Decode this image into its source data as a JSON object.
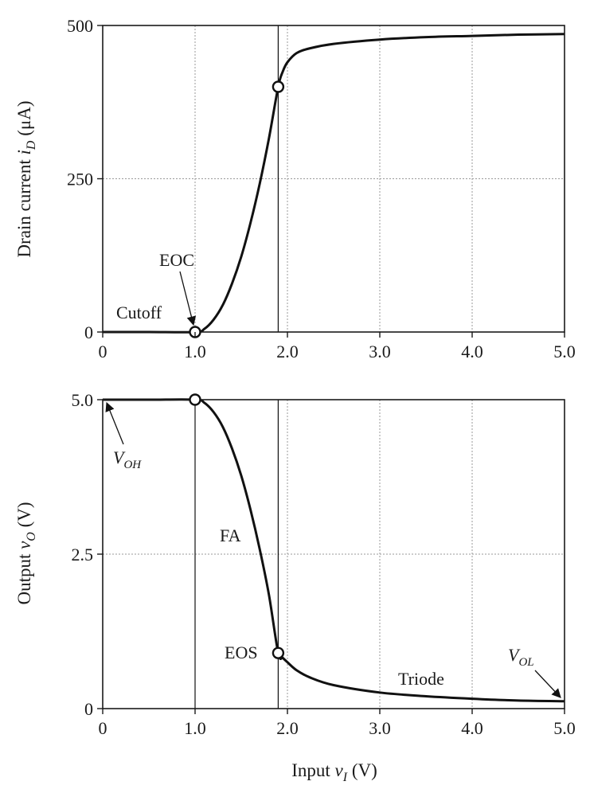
{
  "chart_data": [
    {
      "type": "line",
      "ylabel_main": "Drain current ",
      "ylabel_sym": "i",
      "ylabel_sub": "D",
      "ylabel_unit": " (μA)",
      "xlim": [
        0,
        5
      ],
      "ylim": [
        0,
        500
      ],
      "xticks": [
        "0",
        "1.0",
        "2.0",
        "3.0",
        "4.0",
        "5.0"
      ],
      "xtick_values": [
        0,
        1,
        2,
        3,
        4,
        5
      ],
      "yticks": [
        "0",
        "250",
        "500"
      ],
      "ytick_values": [
        0,
        250,
        500
      ],
      "grid": true,
      "series": [
        {
          "x": [
            0,
            0.5,
            1.0,
            1.1,
            1.2,
            1.3,
            1.4,
            1.5,
            1.6,
            1.7,
            1.8,
            1.9,
            1.95,
            2.0,
            2.1,
            2.25,
            2.5,
            3.0,
            3.5,
            4.0,
            4.5,
            5.0
          ],
          "y": [
            0,
            0,
            0,
            5,
            20,
            44,
            79,
            123,
            178,
            242,
            316,
            400,
            425,
            440,
            455,
            463,
            470,
            477,
            481,
            483,
            485,
            486
          ]
        }
      ],
      "markers": [
        {
          "x": 1.0,
          "y": 0
        },
        {
          "x": 1.9,
          "y": 400
        }
      ],
      "vlines": [
        1.9
      ],
      "annotations": {
        "eoc": "EOC",
        "cutoff": "Cutoff"
      }
    },
    {
      "type": "line",
      "ylabel_main": "Output ",
      "ylabel_sym": "v",
      "ylabel_sub": "O",
      "ylabel_unit": " (V)",
      "xlabel_main": "Input ",
      "xlabel_sym": "v",
      "xlabel_sub": "I",
      "xlabel_unit": " (V)",
      "xlim": [
        0,
        5
      ],
      "ylim": [
        0,
        5
      ],
      "xticks": [
        "0",
        "1.0",
        "2.0",
        "3.0",
        "4.0",
        "5.0"
      ],
      "xtick_values": [
        0,
        1,
        2,
        3,
        4,
        5
      ],
      "yticks": [
        "0",
        "2.5",
        "5.0"
      ],
      "ytick_values": [
        0,
        2.5,
        5
      ],
      "grid": true,
      "series": [
        {
          "x": [
            0,
            0.5,
            1.0,
            1.1,
            1.2,
            1.3,
            1.4,
            1.5,
            1.6,
            1.7,
            1.8,
            1.9,
            1.95,
            2.0,
            2.1,
            2.25,
            2.5,
            3.0,
            3.5,
            4.0,
            4.5,
            5.0
          ],
          "y": [
            5,
            5,
            5,
            4.95,
            4.8,
            4.56,
            4.21,
            3.77,
            3.22,
            2.58,
            1.84,
            0.9,
            0.82,
            0.75,
            0.62,
            0.5,
            0.38,
            0.26,
            0.2,
            0.16,
            0.13,
            0.12
          ]
        }
      ],
      "markers": [
        {
          "x": 1.0,
          "y": 5
        },
        {
          "x": 1.9,
          "y": 0.9
        }
      ],
      "vlines": [
        1.0,
        1.9
      ],
      "annotations": {
        "voh_sym": "V",
        "voh_sub": "OH",
        "fa": "FA",
        "eos": "EOS",
        "triode": "Triode",
        "vol_sym": "V",
        "vol_sub": "OL"
      }
    }
  ]
}
